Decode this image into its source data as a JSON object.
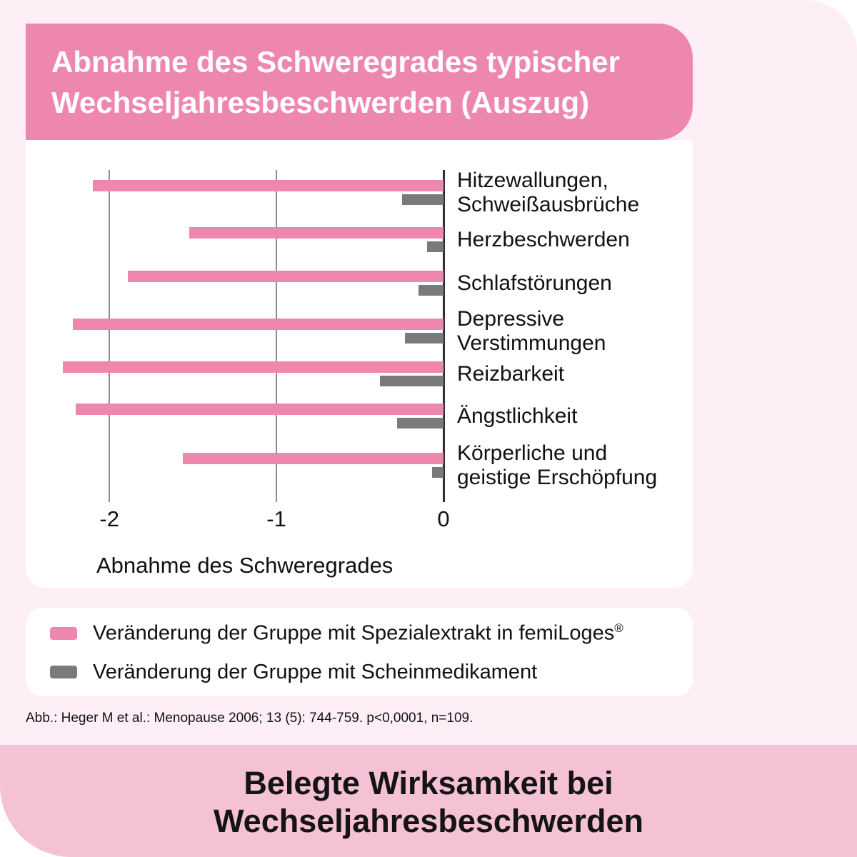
{
  "header": {
    "title_line1": "Abnahme des Schweregrades typischer",
    "title_line2": "Wechseljahresbeschwerden (Auszug)"
  },
  "chart_data": {
    "type": "bar",
    "orientation": "horizontal",
    "categories": [
      [
        "Hitzewallungen,",
        "Schweißausbrüche"
      ],
      [
        "Herzbeschwerden"
      ],
      [
        "Schlafstörungen"
      ],
      [
        "Depressive",
        "Verstimmungen"
      ],
      [
        "Reizbarkeit"
      ],
      [
        "Ängstlichkeit"
      ],
      [
        "Körperliche und",
        "geistige Erschöpfung"
      ]
    ],
    "series": [
      {
        "name": "Veränderung der Gruppe mit Spezialextrakt in femiLoges®",
        "color": "#ee87ae",
        "values": [
          -2.1,
          -1.52,
          -1.89,
          -2.22,
          -2.28,
          -2.2,
          -1.56
        ]
      },
      {
        "name": "Veränderung der Gruppe mit Scheinmedikament",
        "color": "#7a7a7a",
        "values": [
          -0.25,
          -0.1,
          -0.15,
          -0.23,
          -0.38,
          -0.28,
          -0.07
        ]
      }
    ],
    "xlabel": "Abnahme des Schweregrades",
    "x_ticks": [
      "-2",
      "-1",
      "0"
    ],
    "x_tick_values": [
      -2,
      -1,
      0
    ],
    "xlim": [
      -2.36,
      0
    ],
    "grid": "vertical-only",
    "legend_position": "below"
  },
  "legend": {
    "items": [
      {
        "label": "Veränderung der Gruppe mit Spezialextrakt in femiLoges®",
        "color": "#ee87ae"
      },
      {
        "label": "Veränderung der Gruppe mit Scheinmedikament",
        "color": "#7a7a7a"
      }
    ]
  },
  "footnote": {
    "text": "Abb.: Heger M et al.: Menopause 2006; 13 (5): 744-759. p<0,0001, n=109."
  },
  "band": {
    "line1": "Belegte Wirksamkeit bei",
    "line2": "Wechseljahresbeschwerden"
  },
  "colors": {
    "accent_pink": "#ee87ae",
    "band_pink": "#f4c1d5",
    "background_pink": "#fdeff5",
    "placebo_gray": "#7a7a7a",
    "gridline_gray": "#8d8d8d",
    "axis_dark": "#303030",
    "text_dark": "#111111",
    "header_text": "#ffffff"
  }
}
